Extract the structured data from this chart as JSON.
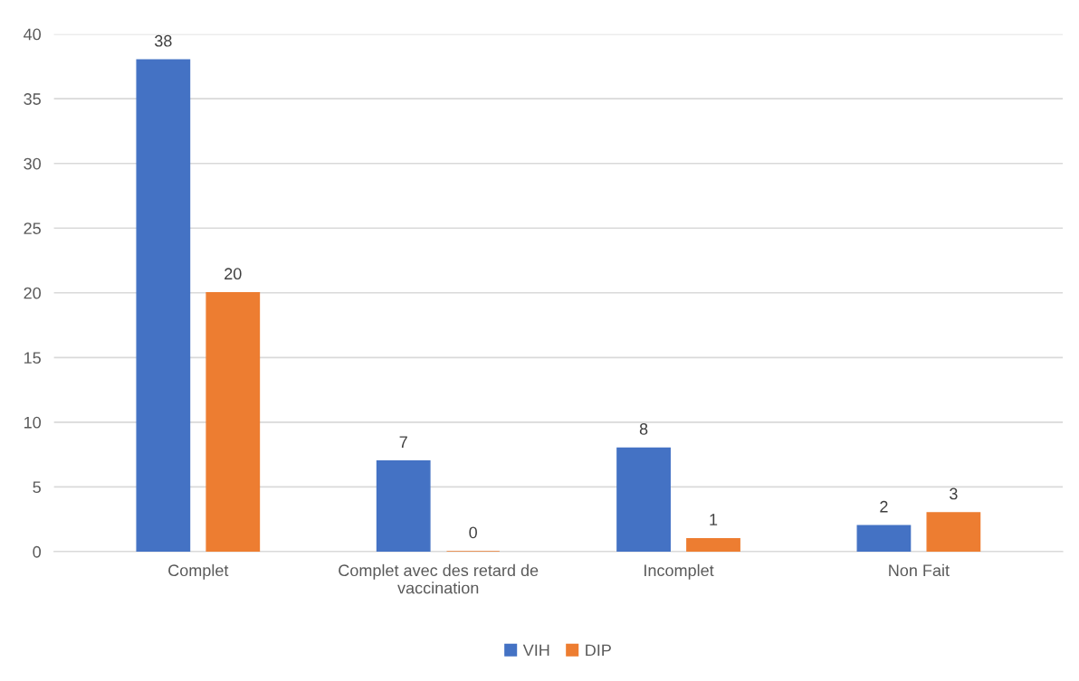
{
  "chart_data": {
    "type": "bar",
    "categories": [
      "Complet",
      "Complet avec des retard de vaccination",
      "Incomplet",
      "Non Fait"
    ],
    "series": [
      {
        "name": "VIH",
        "color": "#4472c4",
        "values": [
          38,
          7,
          8,
          2
        ]
      },
      {
        "name": "DIP",
        "color": "#ed7d31",
        "values": [
          20,
          0,
          1,
          3
        ]
      }
    ],
    "ylim": [
      0,
      40
    ],
    "yticks": [
      0,
      5,
      10,
      15,
      20,
      25,
      30,
      35,
      40
    ],
    "grid": "y",
    "legend": "bottom",
    "data_labels": true
  }
}
